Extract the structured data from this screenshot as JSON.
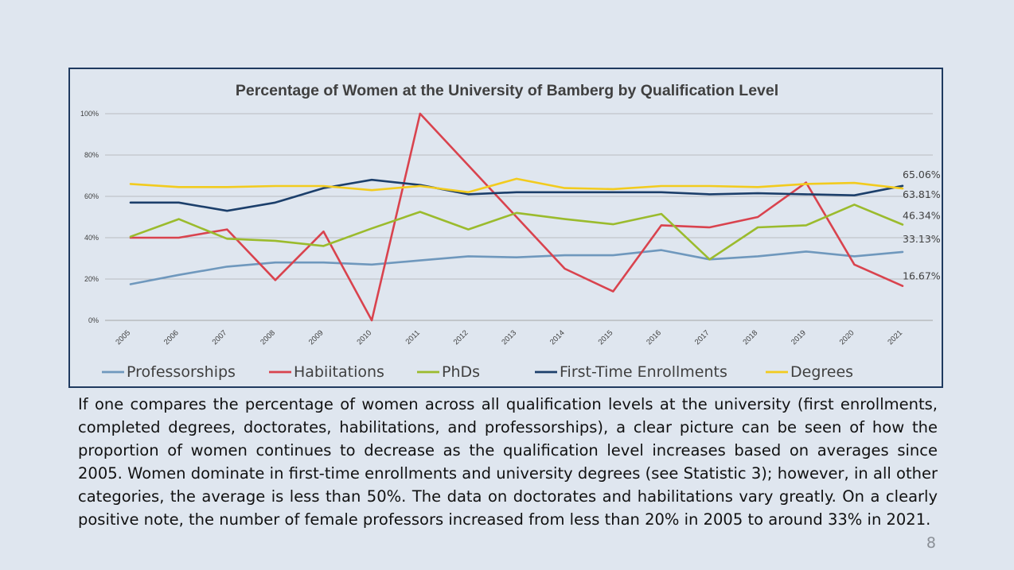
{
  "chart_data": {
    "type": "line",
    "title": "Percentage of Women at the University of Bamberg by Qualification Level",
    "x": [
      "2005",
      "2006",
      "2007",
      "2008",
      "2009",
      "2010",
      "2011",
      "2012",
      "2013",
      "2014",
      "2015",
      "2016",
      "2017",
      "2018",
      "2019",
      "2020",
      "2021"
    ],
    "ylim": [
      0,
      100
    ],
    "yticks": [
      "0%",
      "20%",
      "40%",
      "60%",
      "80%",
      "100%"
    ],
    "grid": true,
    "legend_position": "bottom",
    "series": [
      {
        "name": "Professorships",
        "color": "#6f98bd",
        "values": [
          17.5,
          22,
          26,
          28,
          28,
          27,
          29,
          31,
          30.5,
          31.5,
          31.5,
          34,
          29.5,
          31,
          33.3,
          31,
          33.13
        ]
      },
      {
        "name": "Habiitations",
        "color": "#d9434e",
        "values": [
          40,
          40,
          44,
          19.5,
          43,
          0,
          100,
          75,
          50,
          25,
          14,
          46,
          45,
          50,
          66.7,
          27,
          16.67
        ]
      },
      {
        "name": "PhDs",
        "color": "#9bbb2d",
        "values": [
          40.5,
          49,
          39.5,
          38.5,
          36,
          44.5,
          52.5,
          44,
          52,
          49,
          46.5,
          51.5,
          29.5,
          45,
          46,
          56,
          46.34
        ]
      },
      {
        "name": "First-Time Enrollments",
        "color": "#1c3f6b",
        "values": [
          57,
          57,
          53,
          57,
          64,
          68,
          65.5,
          61,
          62,
          62,
          62,
          62,
          61,
          61.5,
          61,
          60.5,
          65.06
        ]
      },
      {
        "name": "Degrees",
        "color": "#f2cb1e",
        "values": [
          66,
          64.5,
          64.5,
          65,
          65,
          63,
          65,
          62,
          68.5,
          64,
          63.5,
          65,
          65,
          64.5,
          66,
          66.5,
          63.81
        ]
      }
    ],
    "end_labels": [
      "65.06%",
      "63.81%",
      "46.34%",
      "33.13%",
      "16.67%"
    ]
  },
  "body_text": "If one compares the percentage of women across all qualification levels at the university (first enrollments, completed degrees, doctorates, habilitations, and professorships), a clear picture can be seen of how the proportion of women continues to decrease as the qualification level increases based on averages since 2005. Women dominate in first-time enrollments and university degrees (see Statistic 3); however, in all other categories, the average is less than 50%. The data on doctorates and habilitations vary greatly. On a clearly positive note, the number of female professors increased from less than 20% in 2005 to around 33% in 2021.",
  "page_number": "8"
}
